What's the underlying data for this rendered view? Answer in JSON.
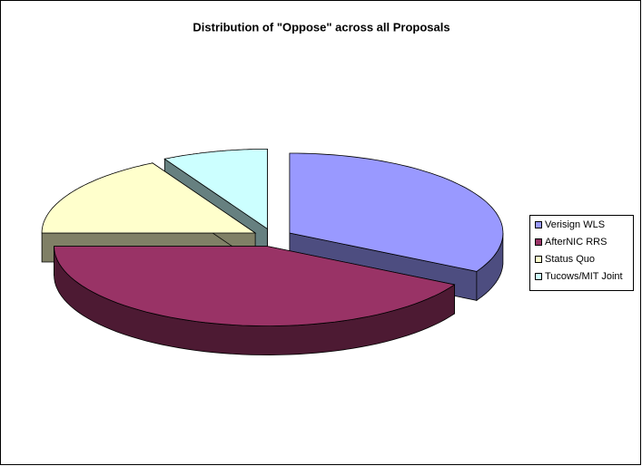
{
  "chart_data": {
    "type": "pie",
    "title": "Distribution of \"Oppose\" across all Proposals",
    "categories": [
      "Verisign WLS",
      "AfterNIC RRS",
      "Status Quo",
      "Tucows/MIT Joint"
    ],
    "values": [
      33,
      42,
      17,
      8
    ],
    "colors": [
      "#9999ff",
      "#993366",
      "#ffffcc",
      "#ccffff"
    ],
    "legend": "right"
  }
}
